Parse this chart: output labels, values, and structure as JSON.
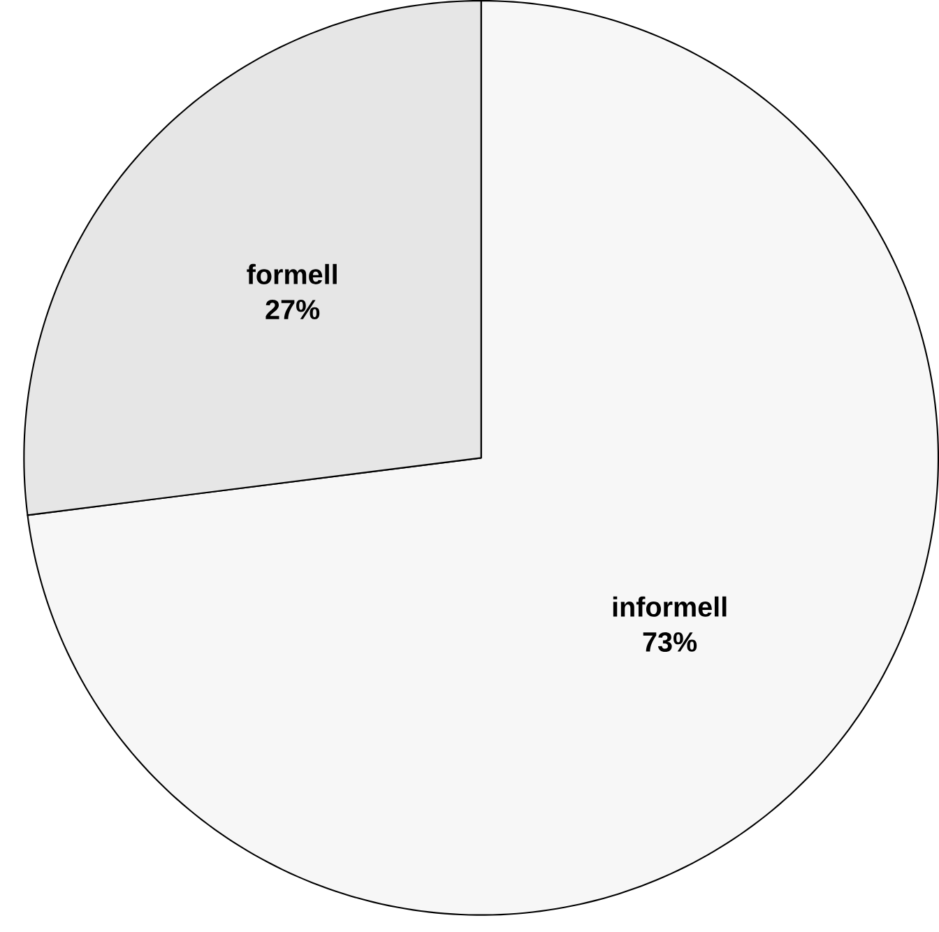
{
  "chart_data": {
    "type": "pie",
    "categories": [
      "informell",
      "formell"
    ],
    "values": [
      73,
      27
    ],
    "value_labels": [
      "73%",
      "27%"
    ],
    "colors": [
      "#f7f7f7",
      "#e6e6e6"
    ]
  }
}
